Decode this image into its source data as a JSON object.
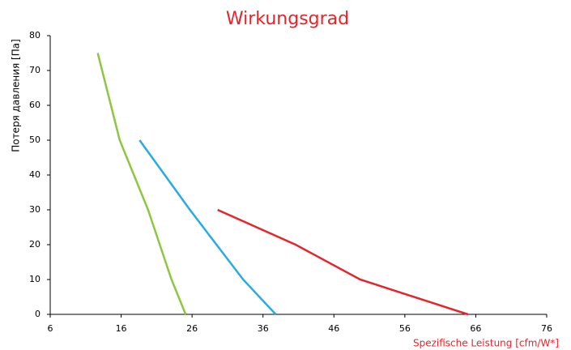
{
  "chart_data": {
    "type": "line",
    "title": "Wirkungsgrad",
    "x_label": "Spezifische Leistung [cfm/W*]",
    "y_label": "Потеря давления [Па]",
    "xlim": [
      6,
      76
    ],
    "xticks": [
      6,
      16,
      26,
      36,
      46,
      56,
      66,
      76
    ],
    "ylim": [
      0,
      80
    ],
    "yticks": [
      0,
      10,
      20,
      30,
      40,
      50,
      60,
      70,
      80
    ],
    "series": [
      {
        "color": "#8dc63f",
        "x": [
          12.7,
          15.8,
          19.8,
          23.1,
          25.1
        ],
        "values": [
          75,
          50,
          30,
          10,
          0
        ]
      },
      {
        "color": "#29abe2",
        "x": [
          18.6,
          25.7,
          33.2,
          37.8
        ],
        "values": [
          50,
          30,
          10,
          0
        ]
      },
      {
        "color": "#e3262b",
        "x": [
          29.6,
          40.6,
          49.7,
          64.9
        ],
        "values": [
          30,
          20,
          10,
          0
        ]
      }
    ]
  }
}
